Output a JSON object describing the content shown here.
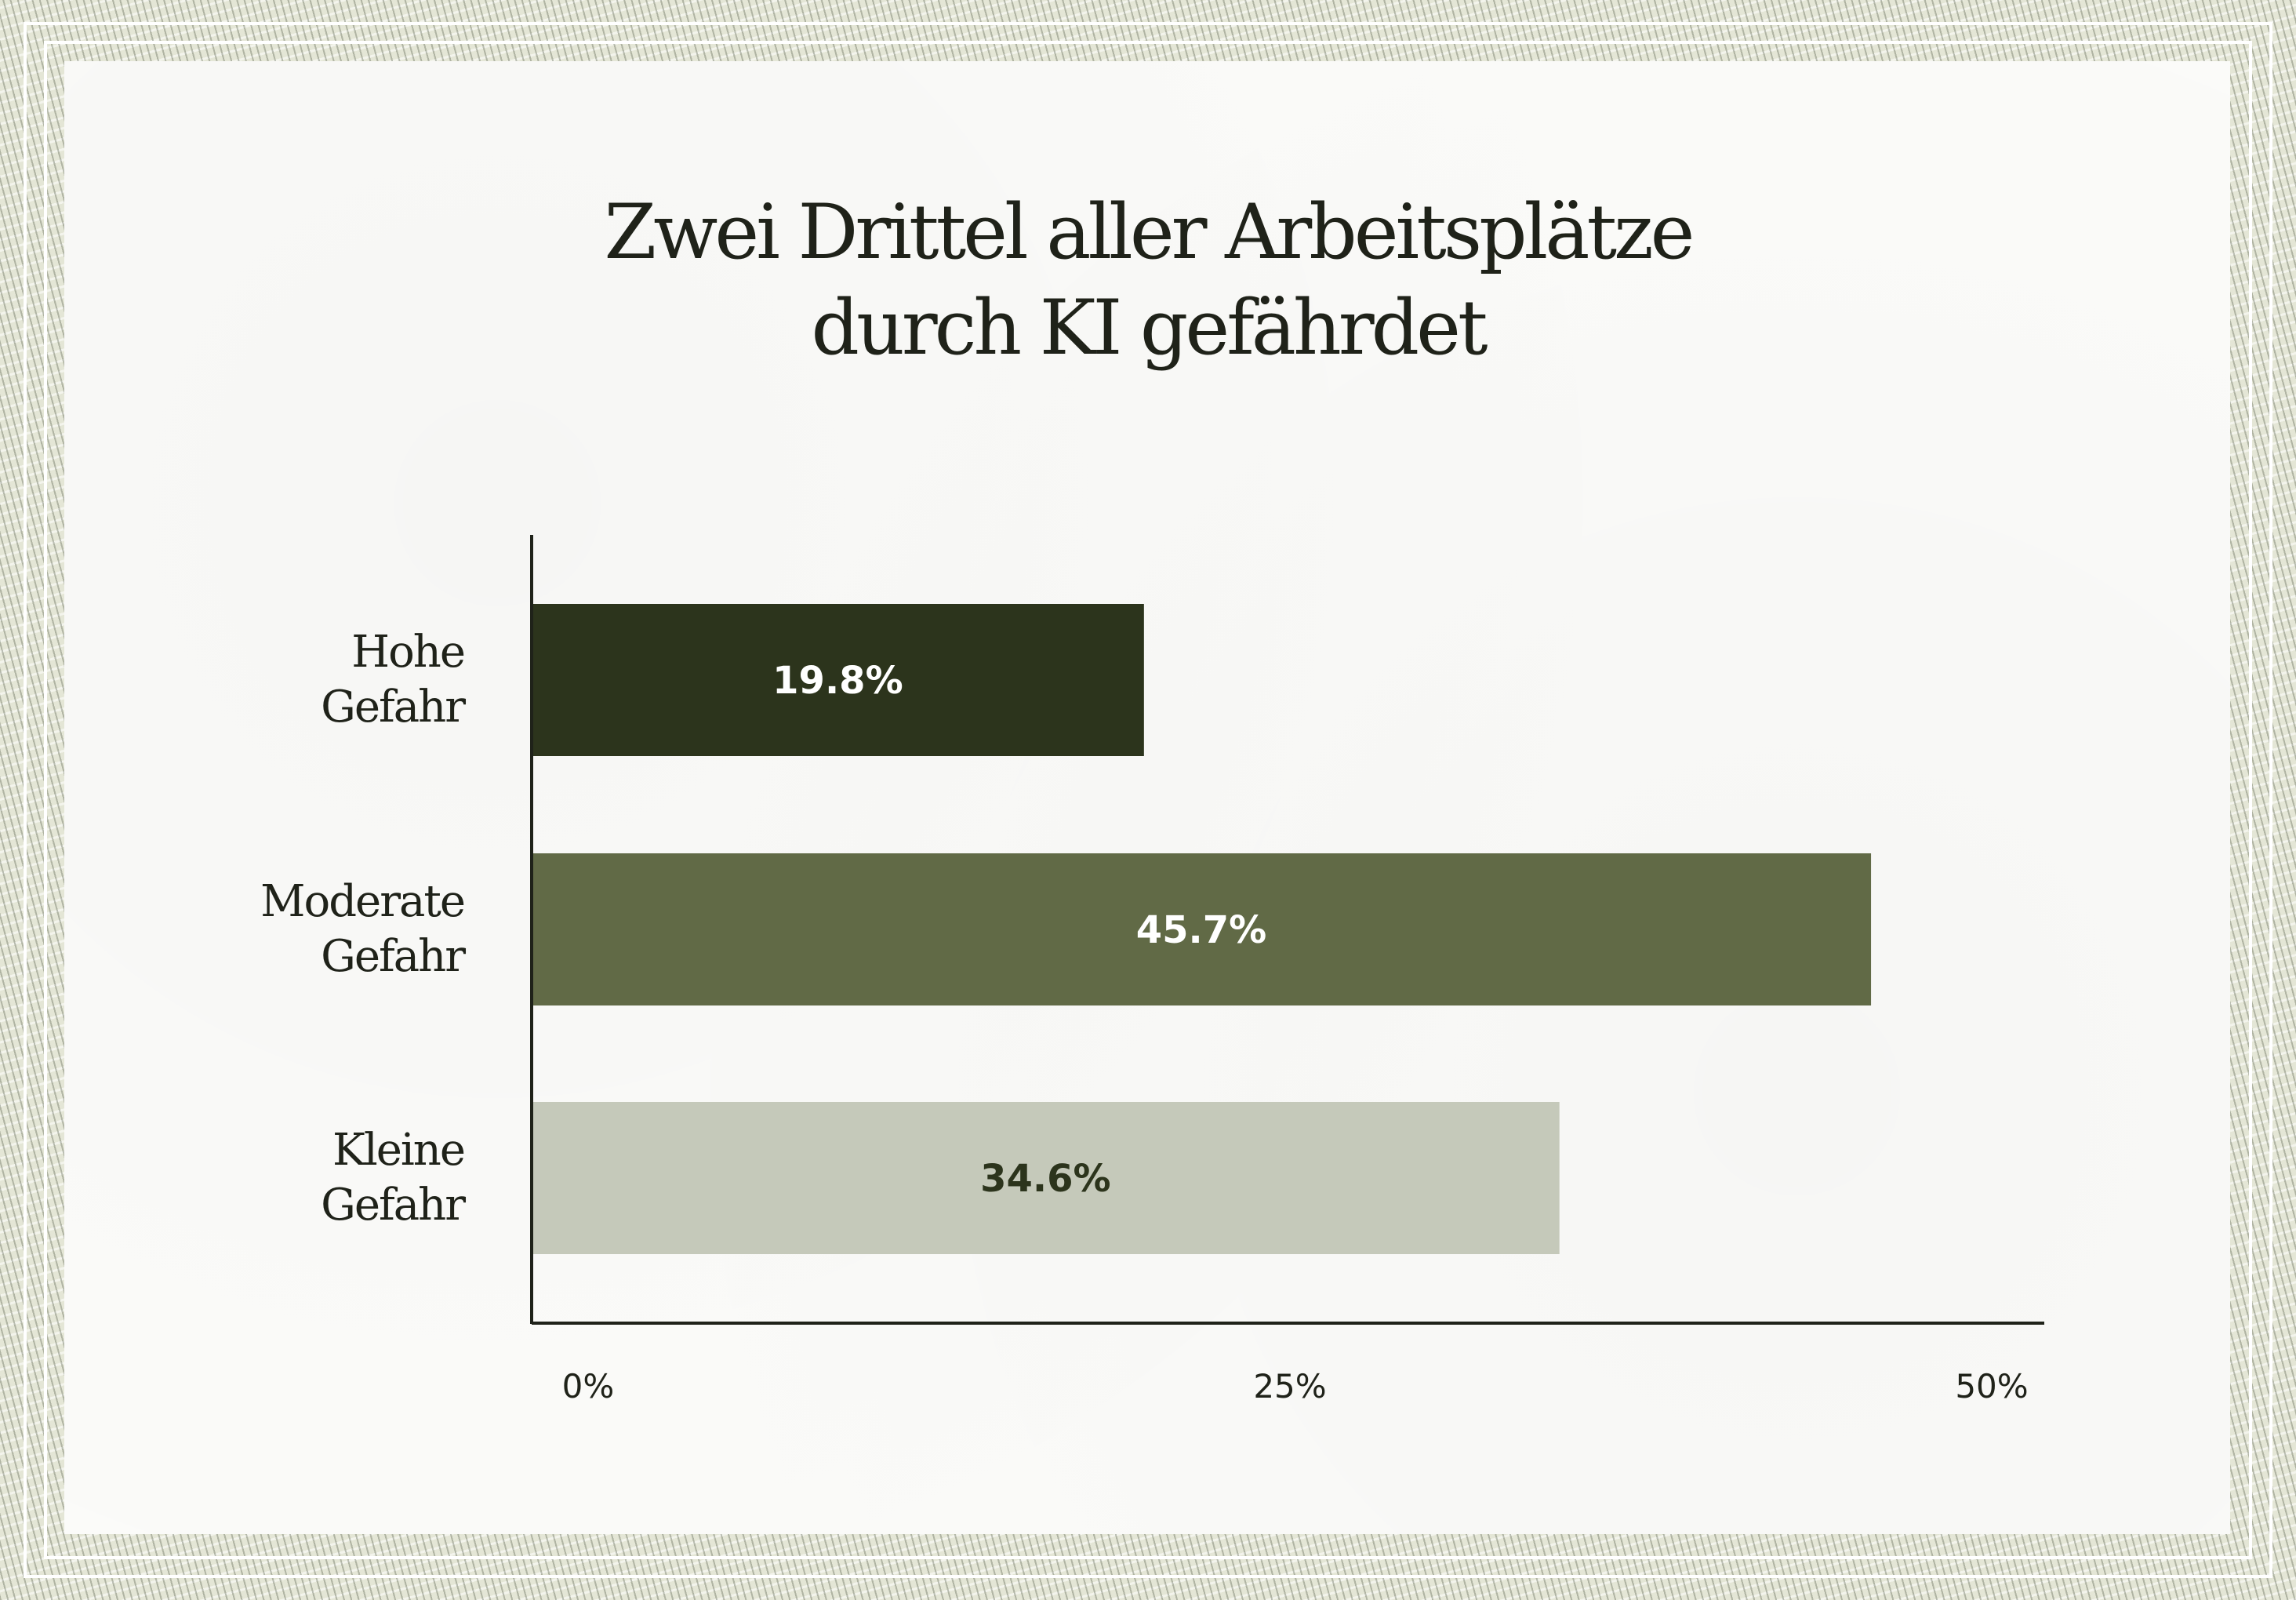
{
  "chart_data": {
    "type": "bar",
    "orientation": "horizontal",
    "title": "Zwei Drittel aller Arbeitsplätze durch KI gefährdet",
    "title_lines": [
      "Zwei Drittel aller Arbeitsplätze",
      "durch KI gefährdet"
    ],
    "categories": [
      [
        "Hohe",
        "Gefahr"
      ],
      [
        "Moderate",
        "Gefahr"
      ],
      [
        "Kleine",
        "Gefahr"
      ]
    ],
    "values": [
      19.8,
      45.7,
      34.6
    ],
    "value_labels": [
      "19.8%",
      "45.7%",
      "34.6%"
    ],
    "bar_colors": [
      "#2c341c",
      "#616a46",
      "#c5c9ba"
    ],
    "value_label_colors": [
      "#ffffff",
      "#ffffff",
      "#2c341c"
    ],
    "xlim": [
      0,
      50
    ],
    "x_ticks": [
      0,
      25,
      50
    ],
    "x_tick_labels": [
      "0%",
      "25%",
      "50%"
    ],
    "xlabel": "",
    "ylabel": "",
    "grid": false,
    "legend": "none"
  }
}
